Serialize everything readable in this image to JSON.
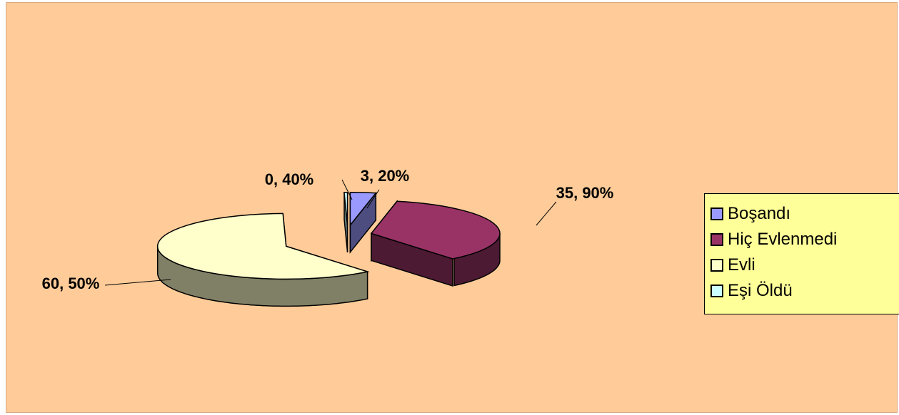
{
  "chart_data": {
    "type": "pie",
    "title": "",
    "slices": [
      {
        "name": "Boşandı",
        "value": 3.2,
        "label": "3, 20%",
        "color": "#9999ff",
        "side_color": "#4d4d80"
      },
      {
        "name": "Hiç Evlenmedi",
        "value": 35.9,
        "label": "35, 90%",
        "color": "#993366",
        "side_color": "#4d1a33"
      },
      {
        "name": "Evli",
        "value": 60.5,
        "label": "60, 50%",
        "color": "#ffffcc",
        "side_color": "#808066"
      },
      {
        "name": "Eşi Öldü",
        "value": 0.4,
        "label": "0, 40%",
        "color": "#ccffff",
        "side_color": "#668080"
      }
    ],
    "exploded": true,
    "three_d": true,
    "legend_position": "right",
    "background_color": "#ffcc99",
    "legend_background": "#ffff99"
  }
}
